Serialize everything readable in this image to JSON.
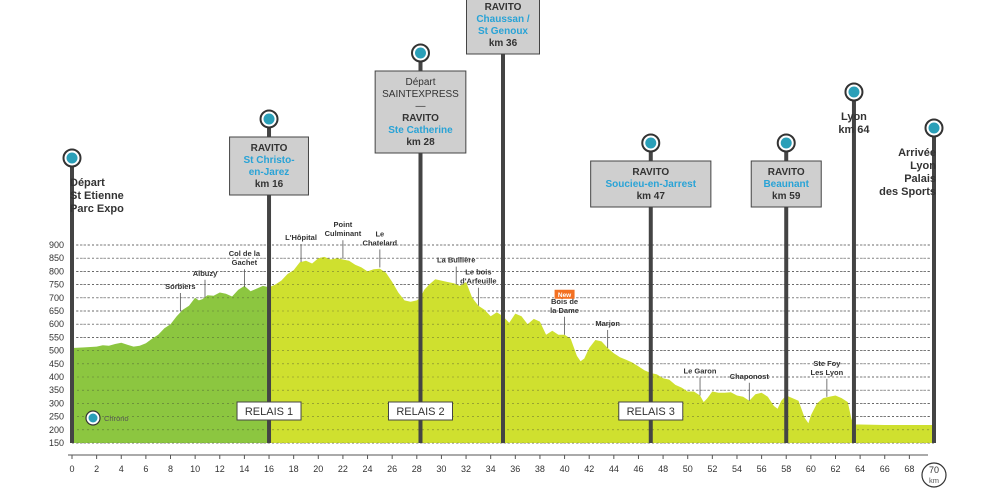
{
  "chart_data": {
    "type": "area",
    "xlabel_unit": "70\nkm",
    "x_ticks": [
      0,
      2,
      4,
      6,
      8,
      10,
      12,
      14,
      16,
      18,
      20,
      22,
      24,
      26,
      28,
      30,
      32,
      34,
      36,
      38,
      40,
      42,
      44,
      46,
      48,
      50,
      52,
      54,
      56,
      58,
      60,
      62,
      64,
      66,
      68
    ],
    "x_end_label": [
      "70",
      "km"
    ],
    "y_ticks": [
      150,
      200,
      250,
      300,
      350,
      400,
      450,
      500,
      550,
      600,
      650,
      700,
      750,
      800,
      850,
      900
    ],
    "ylim": [
      150,
      900
    ],
    "xlim": [
      0,
      70
    ],
    "colors": {
      "leg1": "#8cc640",
      "leg2": "#cfe02f",
      "leg3": "#dde663",
      "pole": "#444444",
      "pin": "#2a9fb8",
      "box": "#cfcfcf",
      "accent": "#29a3d6",
      "new": "#f37021"
    },
    "legs": [
      {
        "name": "RELAIS 1",
        "x_start": 0,
        "x_end": 16
      },
      {
        "name": "RELAIS 2",
        "x_start": 16,
        "x_end": 28.3
      },
      {
        "name": "RELAIS 3",
        "x_start": 28.3,
        "x_end": 70
      }
    ],
    "profile": [
      [
        0,
        510
      ],
      [
        1,
        512
      ],
      [
        2,
        515
      ],
      [
        2.5,
        520
      ],
      [
        3,
        518
      ],
      [
        3.5,
        525
      ],
      [
        4,
        530
      ],
      [
        4.5,
        522
      ],
      [
        5,
        515
      ],
      [
        5.5,
        518
      ],
      [
        6,
        528
      ],
      [
        6.5,
        545
      ],
      [
        7,
        560
      ],
      [
        7.5,
        585
      ],
      [
        8,
        600
      ],
      [
        8.5,
        630
      ],
      [
        9,
        655
      ],
      [
        9.5,
        670
      ],
      [
        10,
        700
      ],
      [
        10.3,
        690
      ],
      [
        10.6,
        695
      ],
      [
        11,
        710
      ],
      [
        11.5,
        708
      ],
      [
        12,
        720
      ],
      [
        12.5,
        715
      ],
      [
        13,
        705
      ],
      [
        13.5,
        730
      ],
      [
        14,
        745
      ],
      [
        14.5,
        725
      ],
      [
        15,
        735
      ],
      [
        15.5,
        745
      ],
      [
        16,
        740
      ],
      [
        16.5,
        750
      ],
      [
        17,
        765
      ],
      [
        17.5,
        790
      ],
      [
        18,
        805
      ],
      [
        18.5,
        835
      ],
      [
        19,
        840
      ],
      [
        19.5,
        830
      ],
      [
        20,
        850
      ],
      [
        20.5,
        855
      ],
      [
        21,
        845
      ],
      [
        21.5,
        850
      ],
      [
        22,
        845
      ],
      [
        22.5,
        840
      ],
      [
        23,
        825
      ],
      [
        23.5,
        815
      ],
      [
        24,
        800
      ],
      [
        24.5,
        808
      ],
      [
        25,
        810
      ],
      [
        25.5,
        795
      ],
      [
        26,
        760
      ],
      [
        26.5,
        720
      ],
      [
        27,
        690
      ],
      [
        27.5,
        685
      ],
      [
        28,
        690
      ],
      [
        28.3,
        700
      ],
      [
        28.6,
        730
      ],
      [
        29,
        750
      ],
      [
        29.5,
        770
      ],
      [
        30,
        765
      ],
      [
        30.5,
        760
      ],
      [
        31,
        755
      ],
      [
        31.5,
        745
      ],
      [
        32,
        760
      ],
      [
        32.5,
        700
      ],
      [
        33,
        670
      ],
      [
        33.5,
        655
      ],
      [
        34,
        630
      ],
      [
        34.5,
        645
      ],
      [
        35,
        630
      ],
      [
        35.5,
        605
      ],
      [
        36,
        640
      ],
      [
        36.5,
        630
      ],
      [
        37,
        600
      ],
      [
        37.5,
        620
      ],
      [
        38,
        610
      ],
      [
        38.5,
        560
      ],
      [
        39,
        575
      ],
      [
        39.5,
        560
      ],
      [
        40,
        560
      ],
      [
        40.5,
        545
      ],
      [
        41,
        480
      ],
      [
        41.3,
        460
      ],
      [
        41.6,
        470
      ],
      [
        42,
        510
      ],
      [
        42.5,
        540
      ],
      [
        43,
        535
      ],
      [
        43.5,
        510
      ],
      [
        44,
        490
      ],
      [
        44.5,
        475
      ],
      [
        45,
        465
      ],
      [
        45.5,
        455
      ],
      [
        46,
        440
      ],
      [
        46.5,
        425
      ],
      [
        47,
        415
      ],
      [
        47.5,
        410
      ],
      [
        48,
        395
      ],
      [
        48.5,
        390
      ],
      [
        49,
        370
      ],
      [
        49.5,
        360
      ],
      [
        50,
        345
      ],
      [
        50.5,
        345
      ],
      [
        51,
        330
      ],
      [
        51.3,
        305
      ],
      [
        51.6,
        320
      ],
      [
        52,
        345
      ],
      [
        52.5,
        340
      ],
      [
        53,
        340
      ],
      [
        53.5,
        342
      ],
      [
        54,
        330
      ],
      [
        54.5,
        325
      ],
      [
        55,
        310
      ],
      [
        55.5,
        335
      ],
      [
        56,
        340
      ],
      [
        56.5,
        325
      ],
      [
        57,
        290
      ],
      [
        57.3,
        280
      ],
      [
        57.6,
        310
      ],
      [
        58,
        330
      ],
      [
        58.5,
        320
      ],
      [
        59,
        310
      ],
      [
        59.5,
        245
      ],
      [
        59.8,
        225
      ],
      [
        60,
        255
      ],
      [
        60.5,
        300
      ],
      [
        61,
        320
      ],
      [
        61.5,
        325
      ],
      [
        62,
        330
      ],
      [
        62.5,
        320
      ],
      [
        63,
        305
      ],
      [
        63.3,
        240
      ],
      [
        63.6,
        220
      ],
      [
        64,
        220
      ],
      [
        66,
        218
      ],
      [
        68,
        218
      ],
      [
        70,
        218
      ]
    ],
    "poles": [
      {
        "x": 0,
        "pin_y": 0.95,
        "lines": [
          {
            "t": "Départ",
            "style": "big"
          },
          {
            "t": "St Etienne",
            "style": "big"
          },
          {
            "t": "Parc Expo",
            "style": "big"
          }
        ],
        "boxed": false,
        "text_align": "start"
      },
      {
        "x": 16,
        "pin_y": 1.08,
        "boxed": true,
        "lines": [
          {
            "t": "RAVITO",
            "style": "dark"
          },
          {
            "t": "St Christo-",
            "style": "blue"
          },
          {
            "t": "en-Jarez",
            "style": "blue"
          },
          {
            "t": "km 16",
            "style": "dark"
          }
        ]
      },
      {
        "x": 28.3,
        "pin_y": 1.3,
        "boxed": true,
        "lines": [
          {
            "t": "Départ",
            "style": "plain"
          },
          {
            "t": "SAINTEXPRESS",
            "style": "plain"
          },
          {
            "t": "—",
            "style": "plain"
          },
          {
            "t": "RAVITO",
            "style": "dark"
          },
          {
            "t": "Ste Catherine",
            "style": "blue"
          },
          {
            "t": "km 28",
            "style": "dark"
          }
        ]
      },
      {
        "x": 35,
        "pin_y": 1.55,
        "boxed": true,
        "lines": [
          {
            "t": "RAVITO",
            "style": "dark"
          },
          {
            "t": "Chaussan /",
            "style": "blue"
          },
          {
            "t": "St Genoux",
            "style": "blue"
          },
          {
            "t": "km 36",
            "style": "dark"
          }
        ]
      },
      {
        "x": 47,
        "pin_y": 1.0,
        "boxed": true,
        "lines": [
          {
            "t": "RAVITO",
            "style": "dark"
          },
          {
            "t": "Soucieu-en-Jarrest",
            "style": "blue"
          },
          {
            "t": "km 47",
            "style": "dark"
          }
        ]
      },
      {
        "x": 58,
        "pin_y": 1.0,
        "boxed": true,
        "lines": [
          {
            "t": "RAVITO",
            "style": "dark"
          },
          {
            "t": "Beaunant",
            "style": "blue"
          },
          {
            "t": "km 59",
            "style": "dark"
          }
        ]
      },
      {
        "x": 63.5,
        "pin_y": 1.17,
        "boxed": false,
        "lines": [
          {
            "t": "Lyon",
            "style": "big"
          },
          {
            "t": "km 64",
            "style": "big"
          }
        ],
        "text_align": "middle"
      },
      {
        "x": 70,
        "pin_y": 1.05,
        "boxed": false,
        "lines": [
          {
            "t": "Arrivée",
            "style": "big"
          },
          {
            "t": "Lyon",
            "style": "big"
          },
          {
            "t": "Palais",
            "style": "big"
          },
          {
            "t": "des Sports",
            "style": "big"
          }
        ],
        "text_align": "end"
      }
    ],
    "annotations": [
      {
        "x": 8.8,
        "elev": 650,
        "lines": [
          "Sorbiers"
        ]
      },
      {
        "x": 10.8,
        "elev": 700,
        "lines": [
          "Albuzy"
        ]
      },
      {
        "x": 14,
        "elev": 740,
        "lines": [
          "Col de la",
          "Gachet"
        ]
      },
      {
        "x": 18.6,
        "elev": 835,
        "lines": [
          "L'Hôpital"
        ]
      },
      {
        "x": 22,
        "elev": 850,
        "lines": [
          "Point",
          "Culminant"
        ]
      },
      {
        "x": 25,
        "elev": 815,
        "lines": [
          "Le",
          "Chatelard"
        ]
      },
      {
        "x": 31.2,
        "elev": 750,
        "lines": [
          "La Bullière"
        ]
      },
      {
        "x": 33,
        "elev": 670,
        "lines": [
          "Le bois",
          "d'Arfeuille"
        ]
      },
      {
        "x": 40,
        "elev": 560,
        "lines": [
          "Bois de",
          "la Dame"
        ],
        "badge": "New"
      },
      {
        "x": 43.5,
        "elev": 510,
        "lines": [
          "Marjon"
        ]
      },
      {
        "x": 51,
        "elev": 330,
        "lines": [
          "Le Garon"
        ]
      },
      {
        "x": 55,
        "elev": 310,
        "lines": [
          "Chaponost"
        ]
      },
      {
        "x": 61.3,
        "elev": 325,
        "lines": [
          "Ste Foy",
          "Les Lyon"
        ]
      }
    ],
    "relais_labels": [
      {
        "x": 16,
        "t": "RELAIS 1"
      },
      {
        "x": 28.3,
        "t": "RELAIS 2"
      },
      {
        "x": 47,
        "t": "RELAIS 3"
      }
    ],
    "chrono": {
      "label": "Chrono"
    }
  }
}
